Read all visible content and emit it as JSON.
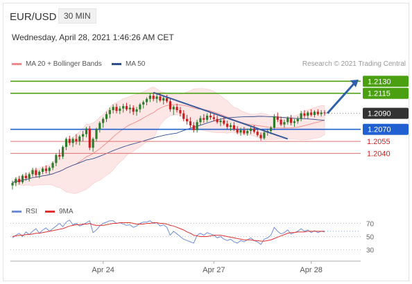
{
  "header": {
    "symbol": "EUR/USD",
    "timeframe": "30 MIN",
    "datetime": "Wednesday, April 28, 2021 1:46:26 AM CET"
  },
  "legend": [
    {
      "label": "MA 20 + Bollinger Bands",
      "color": "#f08a8a"
    },
    {
      "label": "MA 50",
      "color": "#2f4f8f"
    }
  ],
  "credit": "Research © 2021 Trading Central",
  "rsi_legend": [
    {
      "label": "RSI",
      "color": "#6f8ed8"
    },
    {
      "label": "9MA",
      "color": "#e03030"
    }
  ],
  "colors": {
    "up": "#2d7d2d",
    "down": "#c82020",
    "resistance": "#4aa010",
    "pivot": "#2060d0",
    "support": "#e07070",
    "trend": "#3a5a9a",
    "last": "#333333"
  },
  "chart_data": [
    {
      "type": "candlestick",
      "ylim": [
        1.1985,
        1.2145
      ],
      "x_ticks": [
        "Apr 24",
        "Apr 27",
        "Apr 28"
      ],
      "levels": [
        {
          "label": "1.2130",
          "value": 1.213,
          "kind": "resistance"
        },
        {
          "label": "1.2115",
          "value": 1.2115,
          "kind": "resistance"
        },
        {
          "label": "1.2090",
          "value": 1.209,
          "kind": "last"
        },
        {
          "label": "1.2070",
          "value": 1.207,
          "kind": "pivot"
        },
        {
          "label": "1.2055",
          "value": 1.2055,
          "kind": "support"
        },
        {
          "label": "1.2040",
          "value": 1.204,
          "kind": "support"
        }
      ],
      "ohlc": [
        [
          1.2,
          1.2006,
          1.1995,
          1.2003
        ],
        [
          1.2003,
          1.201,
          1.1999,
          1.2008
        ],
        [
          1.2008,
          1.2012,
          1.2001,
          1.2004
        ],
        [
          1.2004,
          1.2014,
          1.2002,
          1.2012
        ],
        [
          1.2012,
          1.2016,
          1.2006,
          1.2009
        ],
        [
          1.2009,
          1.2016,
          1.2005,
          1.2014
        ],
        [
          1.2014,
          1.2022,
          1.2011,
          1.2019
        ],
        [
          1.2019,
          1.2022,
          1.201,
          1.2013
        ],
        [
          1.2013,
          1.2019,
          1.2009,
          1.2017
        ],
        [
          1.2017,
          1.2023,
          1.2014,
          1.2021
        ],
        [
          1.2021,
          1.2025,
          1.2015,
          1.2018
        ],
        [
          1.2018,
          1.2024,
          1.2014,
          1.2022
        ],
        [
          1.2022,
          1.203,
          1.2019,
          1.2028
        ],
        [
          1.2028,
          1.204,
          1.2024,
          1.2038
        ],
        [
          1.2038,
          1.2045,
          1.2032,
          1.2036
        ],
        [
          1.2036,
          1.205,
          1.2033,
          1.2048
        ],
        [
          1.2048,
          1.206,
          1.2044,
          1.2058
        ],
        [
          1.2058,
          1.2062,
          1.205,
          1.2053
        ],
        [
          1.2053,
          1.206,
          1.2048,
          1.2058
        ],
        [
          1.2058,
          1.2064,
          1.2051,
          1.2055
        ],
        [
          1.2055,
          1.2063,
          1.205,
          1.2061
        ],
        [
          1.2061,
          1.2068,
          1.2055,
          1.2064
        ],
        [
          1.2064,
          1.2073,
          1.206,
          1.2071
        ],
        [
          1.2071,
          1.2074,
          1.2044,
          1.2047
        ],
        [
          1.2047,
          1.206,
          1.2042,
          1.2058
        ],
        [
          1.2058,
          1.2072,
          1.2055,
          1.207
        ],
        [
          1.207,
          1.208,
          1.2066,
          1.2078
        ],
        [
          1.2078,
          1.2085,
          1.2072,
          1.2083
        ],
        [
          1.2083,
          1.2092,
          1.2079,
          1.2089
        ],
        [
          1.2089,
          1.2097,
          1.2084,
          1.2094
        ],
        [
          1.2094,
          1.2101,
          1.209,
          1.2098
        ],
        [
          1.2098,
          1.2102,
          1.209,
          1.2093
        ],
        [
          1.2093,
          1.2099,
          1.2089,
          1.2096
        ],
        [
          1.2096,
          1.2102,
          1.2091,
          1.2099
        ],
        [
          1.2099,
          1.2103,
          1.2093,
          1.2095
        ],
        [
          1.2095,
          1.2101,
          1.209,
          1.2097
        ],
        [
          1.2097,
          1.21,
          1.2088,
          1.2092
        ],
        [
          1.2092,
          1.2098,
          1.2087,
          1.2095
        ],
        [
          1.2095,
          1.2103,
          1.2091,
          1.2101
        ],
        [
          1.2101,
          1.2106,
          1.2096,
          1.2104
        ],
        [
          1.2104,
          1.211,
          1.21,
          1.2108
        ],
        [
          1.2108,
          1.2115,
          1.2104,
          1.2112
        ],
        [
          1.2112,
          1.2116,
          1.2105,
          1.2108
        ],
        [
          1.2108,
          1.2114,
          1.2103,
          1.2111
        ],
        [
          1.2111,
          1.2115,
          1.2104,
          1.2106
        ],
        [
          1.2106,
          1.2112,
          1.2101,
          1.2109
        ],
        [
          1.2109,
          1.2113,
          1.2103,
          1.2105
        ],
        [
          1.2105,
          1.2108,
          1.2092,
          1.2095
        ],
        [
          1.2095,
          1.21,
          1.2088,
          1.2098
        ],
        [
          1.2098,
          1.2102,
          1.2091,
          1.2094
        ],
        [
          1.2094,
          1.2098,
          1.2086,
          1.209
        ],
        [
          1.209,
          1.2094,
          1.208,
          1.2083
        ],
        [
          1.2083,
          1.2088,
          1.2076,
          1.208
        ],
        [
          1.208,
          1.2085,
          1.2072,
          1.2075
        ],
        [
          1.2075,
          1.2079,
          1.2066,
          1.2069
        ],
        [
          1.2069,
          1.2082,
          1.2066,
          1.2079
        ],
        [
          1.2079,
          1.2087,
          1.2075,
          1.2084
        ],
        [
          1.2084,
          1.2089,
          1.2078,
          1.2082
        ],
        [
          1.2082,
          1.209,
          1.2079,
          1.2087
        ],
        [
          1.2087,
          1.2091,
          1.2082,
          1.2085
        ],
        [
          1.2085,
          1.2089,
          1.208,
          1.2083
        ],
        [
          1.2083,
          1.2087,
          1.2077,
          1.2079
        ],
        [
          1.2079,
          1.2084,
          1.2074,
          1.2081
        ],
        [
          1.2081,
          1.2085,
          1.2075,
          1.2077
        ],
        [
          1.2077,
          1.2081,
          1.207,
          1.2073
        ],
        [
          1.2073,
          1.2078,
          1.2068,
          1.2075
        ],
        [
          1.2075,
          1.2079,
          1.2068,
          1.207
        ],
        [
          1.207,
          1.2074,
          1.2064,
          1.2066
        ],
        [
          1.2066,
          1.2072,
          1.2062,
          1.2069
        ],
        [
          1.2069,
          1.2073,
          1.2063,
          1.2065
        ],
        [
          1.2065,
          1.2071,
          1.2062,
          1.2068
        ],
        [
          1.2068,
          1.2074,
          1.2064,
          1.2071
        ],
        [
          1.2071,
          1.2075,
          1.2065,
          1.2067
        ],
        [
          1.2067,
          1.2072,
          1.2061,
          1.2063
        ],
        [
          1.2063,
          1.2066,
          1.2056,
          1.2059
        ],
        [
          1.2059,
          1.2069,
          1.2057,
          1.2066
        ],
        [
          1.2066,
          1.2071,
          1.2062,
          1.2068
        ],
        [
          1.2068,
          1.2074,
          1.2064,
          1.2072
        ],
        [
          1.2072,
          1.2089,
          1.2069,
          1.2086
        ],
        [
          1.2086,
          1.2091,
          1.2079,
          1.2082
        ],
        [
          1.2082,
          1.2086,
          1.2074,
          1.2076
        ],
        [
          1.2076,
          1.2082,
          1.2072,
          1.2079
        ],
        [
          1.2079,
          1.2086,
          1.2076,
          1.2084
        ],
        [
          1.2084,
          1.2088,
          1.2075,
          1.2078
        ],
        [
          1.2078,
          1.2083,
          1.2073,
          1.208
        ],
        [
          1.208,
          1.2086,
          1.2077,
          1.2083
        ],
        [
          1.2083,
          1.2093,
          1.208,
          1.209
        ],
        [
          1.209,
          1.2094,
          1.2084,
          1.2087
        ],
        [
          1.2087,
          1.2093,
          1.2083,
          1.2091
        ],
        [
          1.2091,
          1.2095,
          1.2086,
          1.2088
        ],
        [
          1.2088,
          1.2094,
          1.2085,
          1.2092
        ],
        [
          1.2092,
          1.2095,
          1.2087,
          1.2089
        ],
        [
          1.2089,
          1.2094,
          1.2086,
          1.2091
        ],
        [
          1.2091,
          1.2094,
          1.2087,
          1.209
        ]
      ]
    },
    {
      "type": "line",
      "name": "RSI",
      "ylim": [
        20,
        80
      ],
      "y_ticks": [
        70,
        50,
        30
      ],
      "series": [
        {
          "name": "RSI",
          "color": "#6f8ed8",
          "values": [
            48,
            52,
            55,
            50,
            57,
            53,
            58,
            62,
            55,
            60,
            63,
            58,
            62,
            66,
            70,
            65,
            72,
            75,
            68,
            70,
            66,
            68,
            71,
            74,
            56,
            60,
            66,
            70,
            72,
            74,
            74,
            70,
            71,
            69,
            67,
            68,
            64,
            66,
            70,
            72,
            72,
            74,
            70,
            71,
            66,
            68,
            64,
            52,
            58,
            54,
            50,
            46,
            44,
            42,
            40,
            52,
            55,
            52,
            56,
            54,
            52,
            48,
            50,
            46,
            44,
            46,
            42,
            40,
            44,
            42,
            45,
            48,
            44,
            42,
            38,
            46,
            48,
            52,
            64,
            58,
            54,
            56,
            60,
            54,
            56,
            58,
            62,
            58,
            60,
            56,
            59,
            56,
            58,
            57
          ]
        },
        {
          "name": "9MA",
          "color": "#e03030",
          "values": [
            50,
            51,
            52,
            52,
            53,
            53,
            54,
            55,
            55,
            56,
            57,
            58,
            59,
            60,
            61,
            62,
            64,
            66,
            67,
            68,
            68,
            69,
            69,
            70,
            68,
            67,
            67,
            67,
            68,
            69,
            70,
            70,
            71,
            71,
            71,
            71,
            70,
            69,
            69,
            69,
            70,
            70,
            71,
            71,
            70,
            70,
            69,
            67,
            66,
            64,
            62,
            60,
            57,
            55,
            52,
            51,
            50,
            50,
            50,
            51,
            52,
            52,
            52,
            51,
            50,
            49,
            48,
            47,
            46,
            45,
            45,
            45,
            44,
            44,
            43,
            43,
            44,
            45,
            47,
            49,
            51,
            53,
            55,
            56,
            56,
            57,
            57,
            57,
            58,
            58,
            58,
            58,
            58,
            58
          ]
        }
      ]
    }
  ]
}
